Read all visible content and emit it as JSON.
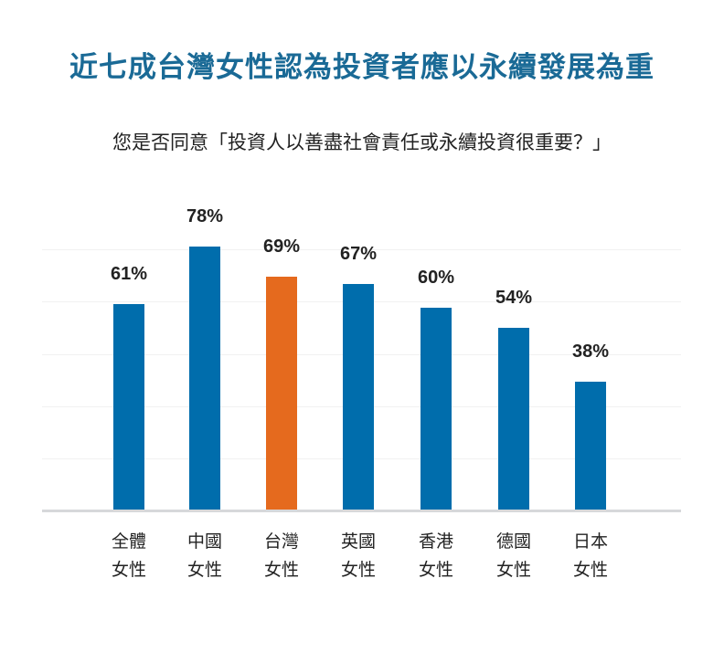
{
  "title": "近七成台灣女性認為投資者應以永續發展為重",
  "subtitle": "您是否同意「投資人以善盡社會責任或永續投資很重要？」",
  "colors": {
    "title": "#1a6a96",
    "bar_default": "#006dac",
    "bar_highlight": "#e56a1e",
    "text": "#222222"
  },
  "chart_data": {
    "type": "bar",
    "title": "近七成台灣女性認為投資者應以永續發展為重",
    "subtitle": "您是否同意「投資人以善盡社會責任或永續投資很重要？」",
    "categories": [
      "全體女性",
      "中國女性",
      "台灣女性",
      "英國女性",
      "香港女性",
      "德國女性",
      "日本女性"
    ],
    "values": [
      61,
      78,
      69,
      67,
      60,
      54,
      38
    ],
    "value_labels": [
      "61%",
      "78%",
      "69%",
      "67%",
      "60%",
      "54%",
      "38%"
    ],
    "highlight_index": 2,
    "xlabel": "",
    "ylabel": "",
    "ylim": [
      0,
      100
    ],
    "grid": true,
    "legend": null
  },
  "bars": [
    {
      "line1": "全體",
      "line2": "女性",
      "value": "61%"
    },
    {
      "line1": "中國",
      "line2": "女性",
      "value": "78%"
    },
    {
      "line1": "台灣",
      "line2": "女性",
      "value": "69%"
    },
    {
      "line1": "英國",
      "line2": "女性",
      "value": "67%"
    },
    {
      "line1": "香港",
      "line2": "女性",
      "value": "60%"
    },
    {
      "line1": "德國",
      "line2": "女性",
      "value": "54%"
    },
    {
      "line1": "日本",
      "line2": "女性",
      "value": "38%"
    }
  ]
}
